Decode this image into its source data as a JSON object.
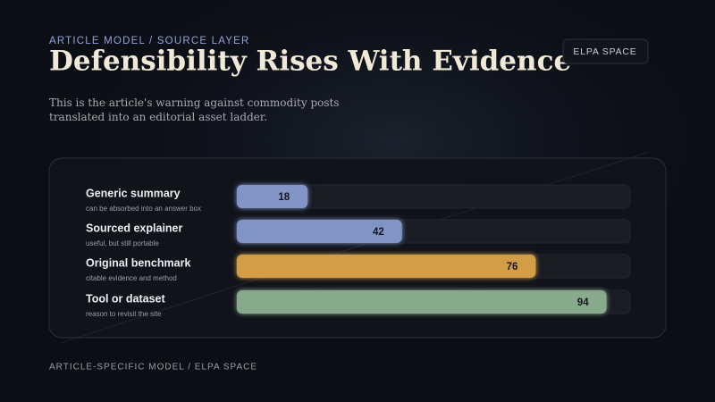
{
  "chart_data": {
    "type": "bar",
    "orientation": "horizontal",
    "kicker": "ARTICLE MODEL / SOURCE LAYER",
    "title": "Defensibility Rises With Evidence",
    "subtitle": "This is the article's warning against commodity posts translated into an editorial asset ladder.",
    "badge": "ELPA SPACE",
    "footer": "ARTICLE-SPECIFIC MODEL / ELPA SPACE",
    "categories": [
      "Generic summary",
      "Sourced explainer",
      "Original benchmark",
      "Tool or dataset"
    ],
    "category_notes": [
      "can be absorbed into an answer box",
      "useful, but still portable",
      "citable evidence and method",
      "reason to revisit the site"
    ],
    "values": [
      18,
      42,
      76,
      94
    ],
    "colors": [
      "#8094c6",
      "#8094c6",
      "#d39d46",
      "#86aa8b"
    ],
    "xlim": [
      0,
      100
    ]
  }
}
